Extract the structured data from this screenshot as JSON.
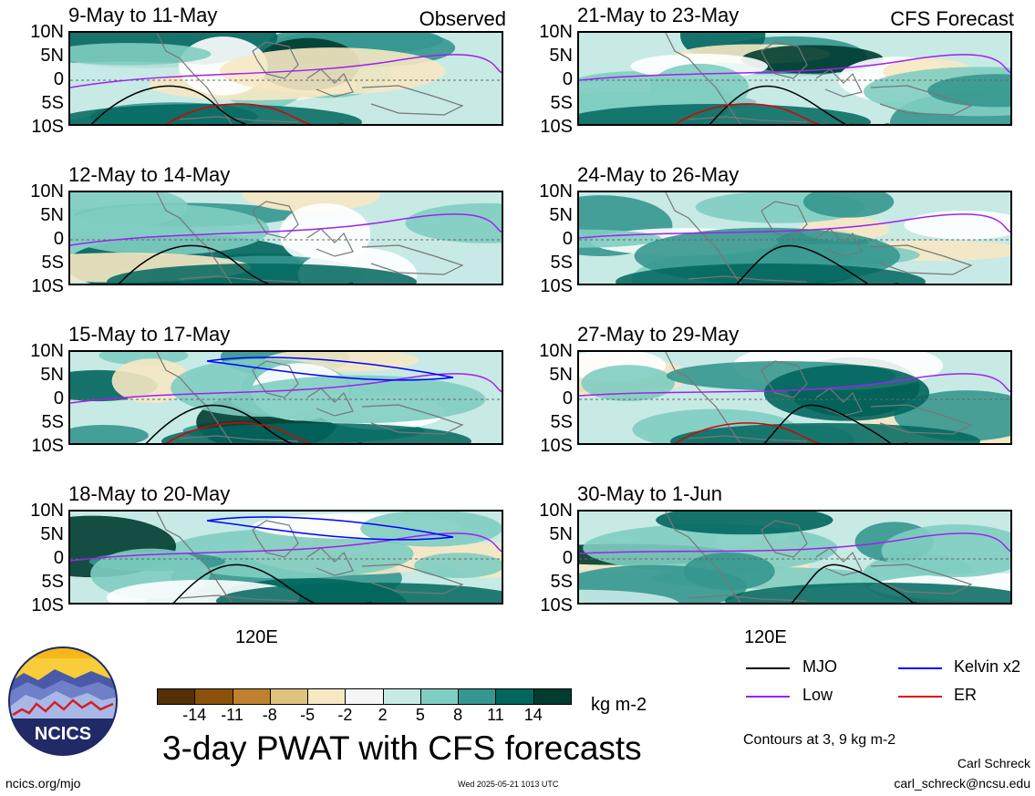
{
  "panels_observed": [
    {
      "title": "9-May to 11-May"
    },
    {
      "title": "12-May to 14-May"
    },
    {
      "title": "15-May to 17-May"
    },
    {
      "title": "18-May to 20-May"
    }
  ],
  "panels_forecast": [
    {
      "title": "21-May to 23-May"
    },
    {
      "title": "24-May to 26-May"
    },
    {
      "title": "27-May to 29-May"
    },
    {
      "title": "30-May to 1-Jun"
    }
  ],
  "tags": {
    "observed": "Observed",
    "forecast": "CFS Forecast"
  },
  "y_ticks": [
    "10N",
    "5N",
    "0",
    "5S",
    "10S"
  ],
  "x_tick": "120E",
  "colorbar": {
    "ticks": [
      "-14",
      "-11",
      "-8",
      "-5",
      "-2",
      "2",
      "5",
      "8",
      "11",
      "14"
    ],
    "unit": "kg m-2",
    "colors": [
      "#543005",
      "#8c510a",
      "#bf812d",
      "#dfc27d",
      "#f6e8c3",
      "#f5f5f5",
      "#c7eae5",
      "#80cdc1",
      "#35978f",
      "#01665e",
      "#003c30"
    ]
  },
  "legend": {
    "items": [
      {
        "label": "MJO",
        "color": "#000000"
      },
      {
        "label": "Kelvin x2",
        "color": "#0000ff"
      },
      {
        "label": "Low",
        "color": "#a020f0"
      },
      {
        "label": "ER",
        "color": "#dd0000"
      }
    ],
    "contours_note": "Contours at 3, 9 kg m-2"
  },
  "main_title": "3-day PWAT with CFS forecasts",
  "logo_text": "NCICS",
  "footer": {
    "url": "ncics.org/mjo",
    "timestamp": "Wed 2025-05-21 1013 UTC",
    "author": "Carl Schreck",
    "email": "carl_schreck@ncsu.edu"
  }
}
